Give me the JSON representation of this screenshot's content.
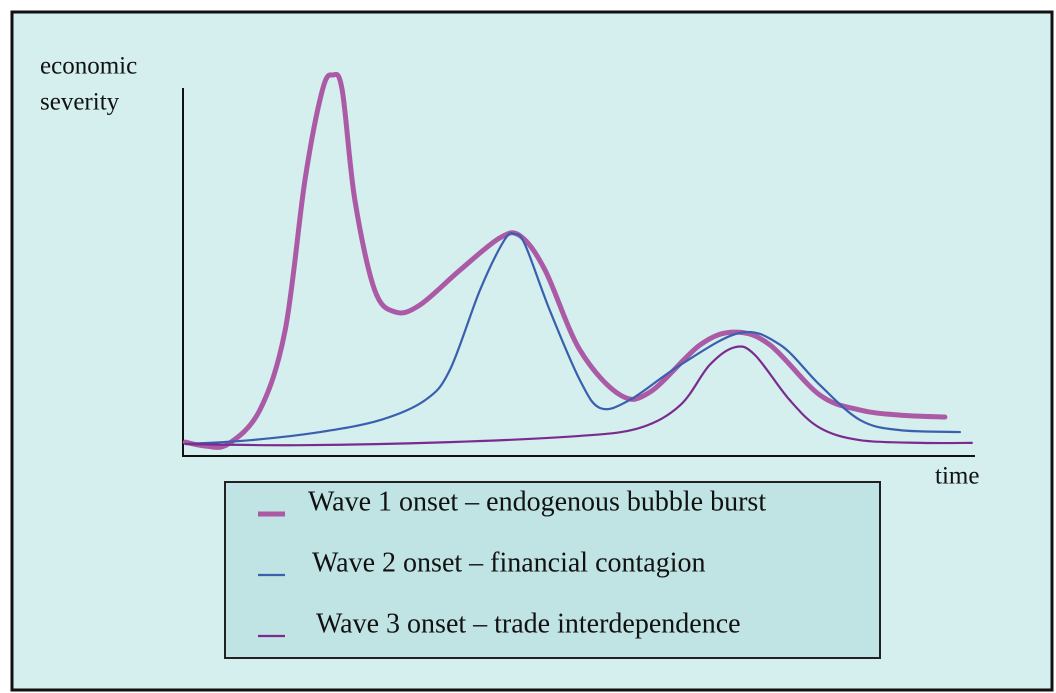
{
  "chart_data": {
    "type": "line",
    "y_label": [
      "economic",
      "severity"
    ],
    "x_label": "time",
    "xlim": [
      0,
      100
    ],
    "ylim": [
      0,
      100
    ],
    "series": [
      {
        "name": "Wave 1 onset – endogenous bubble burst",
        "color": "#ab5aa6",
        "x": [
          0.3,
          2.8,
          5.7,
          9.7,
          12.9,
          15.4,
          17.6,
          18.9,
          20.1,
          21.7,
          24.2,
          26.8,
          29.9,
          35.0,
          40.0,
          42.6,
          45.7,
          50.1,
          55.2,
          59.0,
          65.3,
          69.7,
          74.1,
          80.4,
          85.5,
          90.5,
          96.2
        ],
        "values": [
          3.6,
          2.6,
          3.1,
          11.9,
          32.6,
          71.5,
          94.8,
          98.7,
          94.8,
          66.3,
          43.0,
          37.3,
          39.1,
          48.2,
          56.5,
          57.0,
          48.2,
          27.5,
          15.8,
          16.6,
          28.8,
          32.1,
          28.8,
          15.8,
          11.9,
          10.6,
          10.1
        ]
      },
      {
        "name": "Wave 2 onset – financial contagion",
        "color": "#3a5fae",
        "x": [
          0.3,
          8.5,
          17.3,
          24.9,
          30.6,
          33.7,
          37.5,
          40.6,
          41.9,
          43.2,
          46.3,
          50.1,
          52.7,
          56.4,
          62.8,
          70.3,
          75.4,
          80.4,
          85.5,
          90.5,
          98.1
        ],
        "values": [
          3.1,
          4.1,
          6.2,
          9.3,
          14.5,
          22.3,
          43.0,
          56.0,
          57.5,
          54.7,
          37.8,
          19.7,
          12.4,
          14.5,
          23.6,
          31.9,
          28.8,
          18.4,
          9.3,
          6.7,
          6.2
        ]
      },
      {
        "name": "Wave 3 onset – trade interdependence",
        "color": "#7a2b8e",
        "x": [
          0.3,
          14.8,
          33.7,
          50.1,
          57.7,
          62.8,
          66.5,
          69.7,
          72.2,
          76.6,
          80.4,
          85.5,
          93.3,
          99.6
        ],
        "values": [
          3.1,
          2.8,
          3.6,
          5.2,
          7.3,
          13.2,
          23.6,
          28.2,
          26.2,
          14.5,
          7.3,
          4.1,
          3.4,
          3.4
        ]
      }
    ]
  }
}
